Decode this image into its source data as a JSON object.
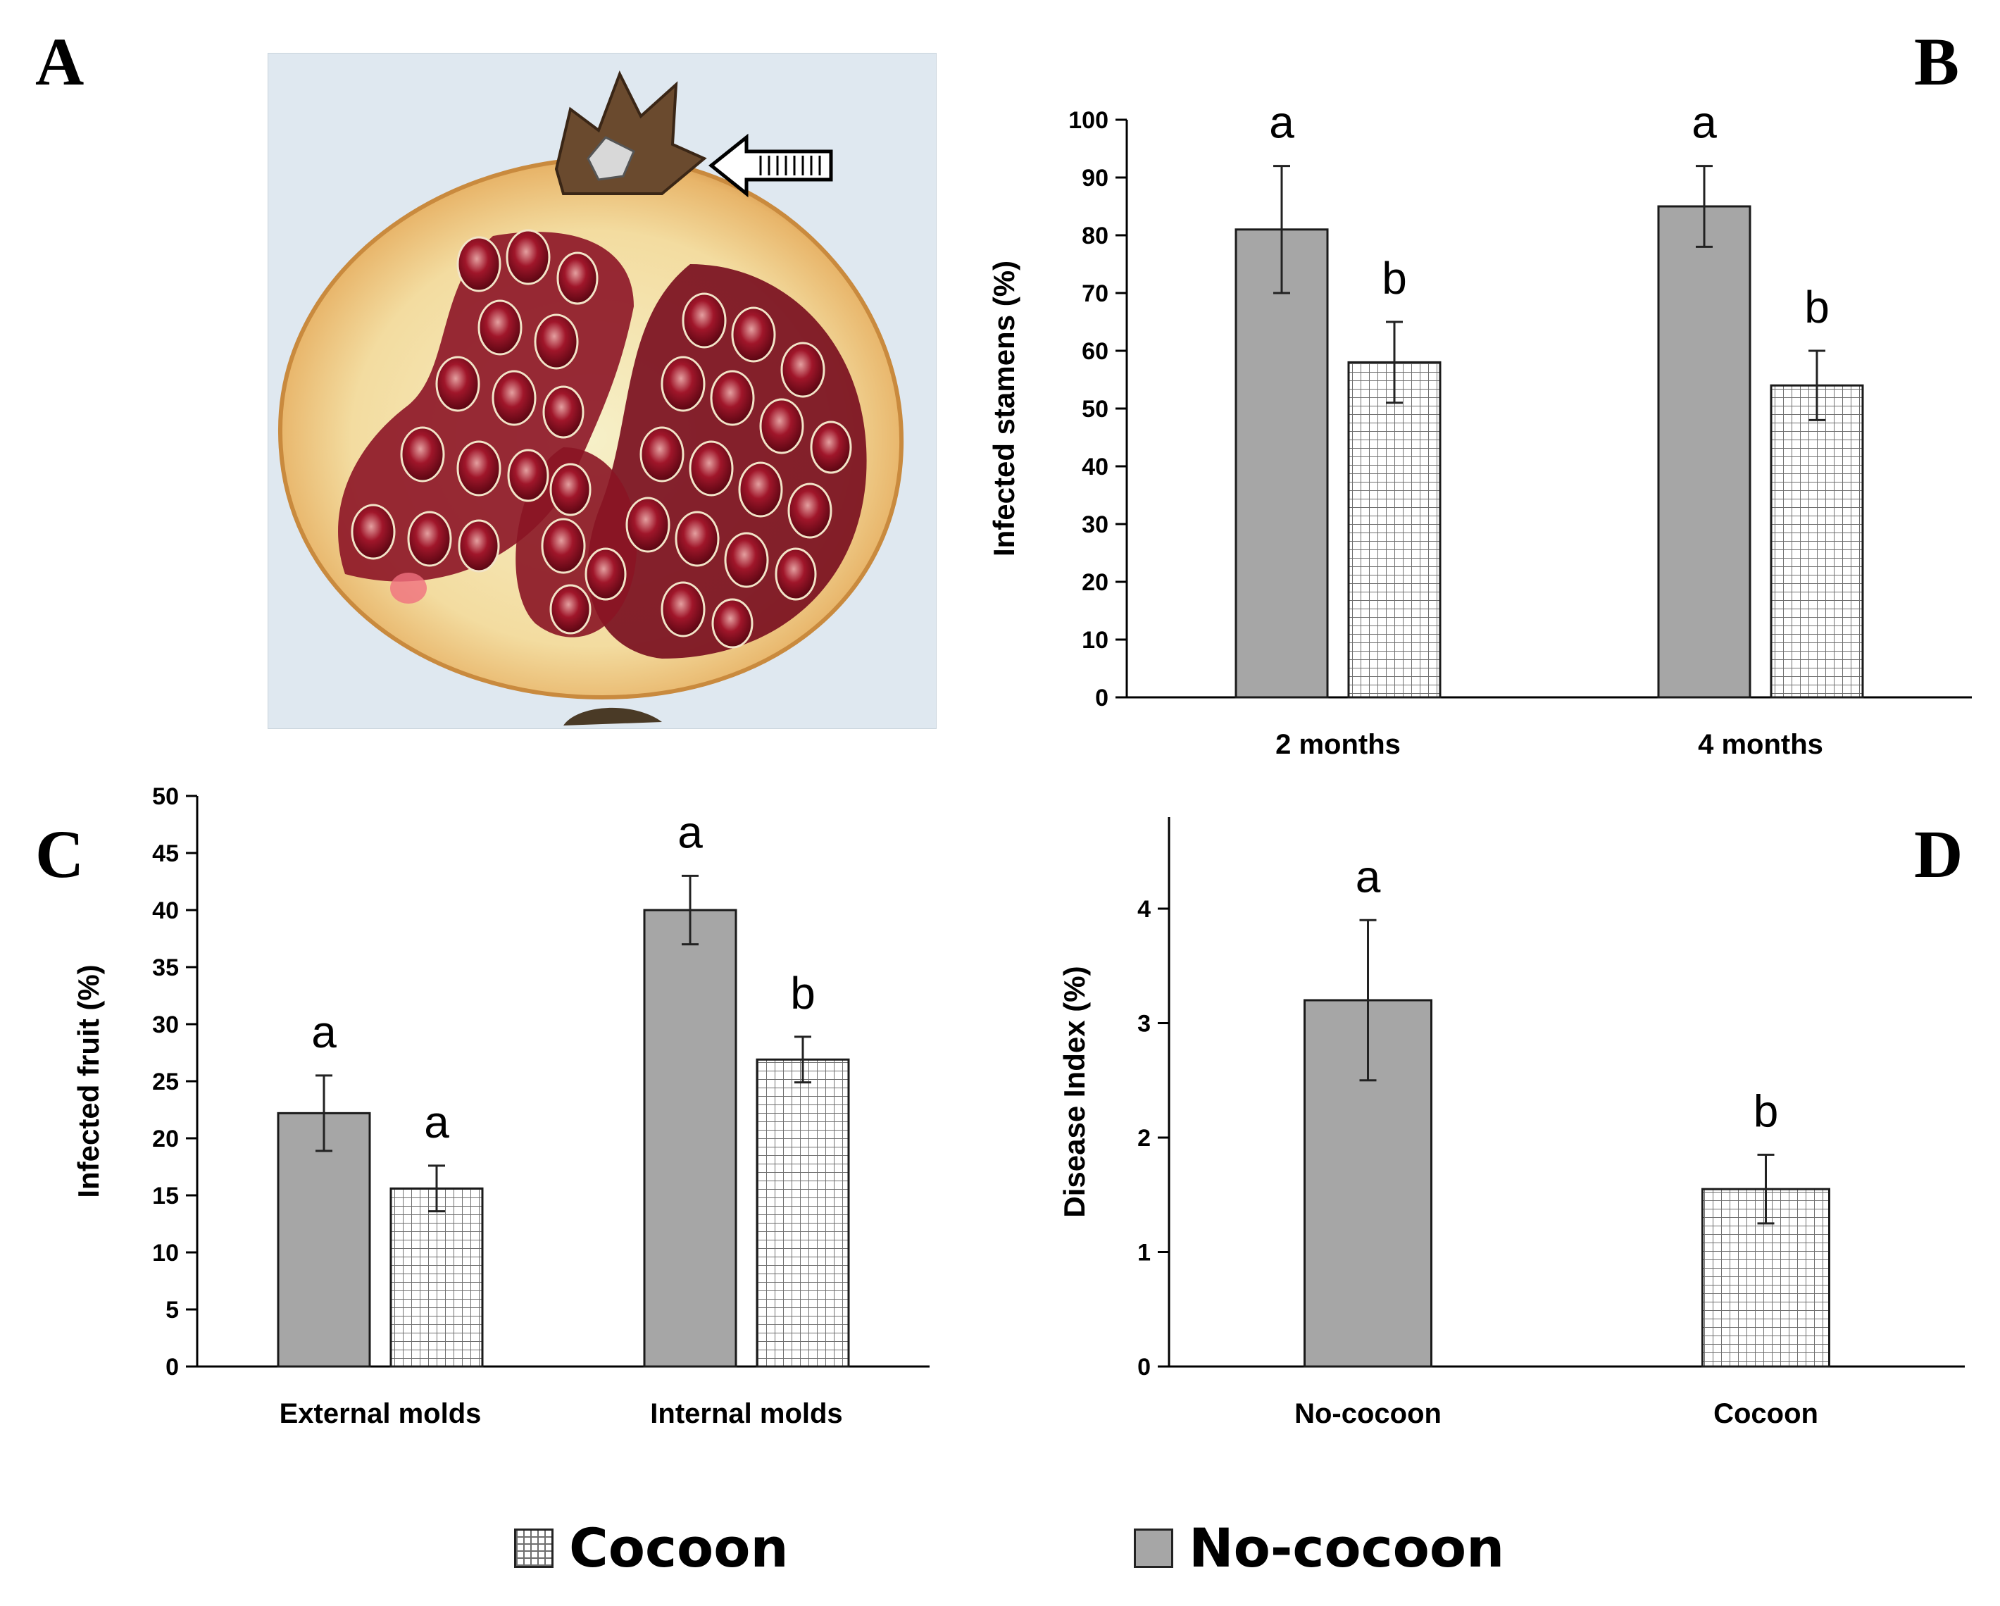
{
  "panel_letters": {
    "a": "A",
    "b": "B",
    "c": "C",
    "d": "D"
  },
  "photo": {
    "subject": "halved-pomegranate-photo",
    "arrow": "arrow-pointing-left-icon"
  },
  "colors": {
    "no_cocoon_fill": "#a6a6a6",
    "cocoon_fill": "#ffffff",
    "cocoon_grid": "#6f6f6f",
    "outline": "#1a1a1a"
  },
  "legend": {
    "cocoon": "Cocoon",
    "no_cocoon": "No-cocoon"
  },
  "chart_data": [
    {
      "id": "B",
      "type": "bar",
      "ylabel": "Infected stamens (%)",
      "ylim": [
        0,
        100
      ],
      "yticks": [
        0,
        10,
        20,
        30,
        40,
        50,
        60,
        70,
        80,
        90,
        100
      ],
      "categories": [
        "2 months",
        "4 months"
      ],
      "grid": false,
      "series": [
        {
          "name": "No-cocoon",
          "values": [
            81,
            85
          ],
          "errors": [
            11,
            7
          ],
          "sig": [
            "a",
            "a"
          ]
        },
        {
          "name": "Cocoon",
          "values": [
            58,
            54
          ],
          "errors": [
            7,
            6
          ],
          "sig": [
            "b",
            "b"
          ]
        }
      ]
    },
    {
      "id": "C",
      "type": "bar",
      "ylabel": "Infected fruit (%)",
      "ylim": [
        0,
        50
      ],
      "yticks": [
        0,
        5,
        10,
        15,
        20,
        25,
        30,
        35,
        40,
        45,
        50
      ],
      "categories": [
        "External molds",
        "Internal molds"
      ],
      "grid": false,
      "series": [
        {
          "name": "No-cocoon",
          "values": [
            22.2,
            40
          ],
          "errors": [
            3.3,
            3
          ],
          "sig": [
            "a",
            "a"
          ]
        },
        {
          "name": "Cocoon",
          "values": [
            15.6,
            26.9
          ],
          "errors": [
            2,
            2
          ],
          "sig": [
            "a",
            "b"
          ]
        }
      ]
    },
    {
      "id": "D",
      "type": "bar",
      "ylabel": "Disease Index (%)",
      "ylim": [
        0,
        4.8
      ],
      "yticks": [
        0,
        1,
        2,
        3,
        4
      ],
      "categories": [
        "No-cocoon",
        "Cocoon"
      ],
      "grid": false,
      "bars": [
        {
          "category": "No-cocoon",
          "series": "No-cocoon",
          "value": 3.2,
          "error": 0.7,
          "sig": "a"
        },
        {
          "category": "Cocoon",
          "series": "Cocoon",
          "value": 1.55,
          "error": 0.3,
          "sig": "b"
        }
      ]
    }
  ]
}
